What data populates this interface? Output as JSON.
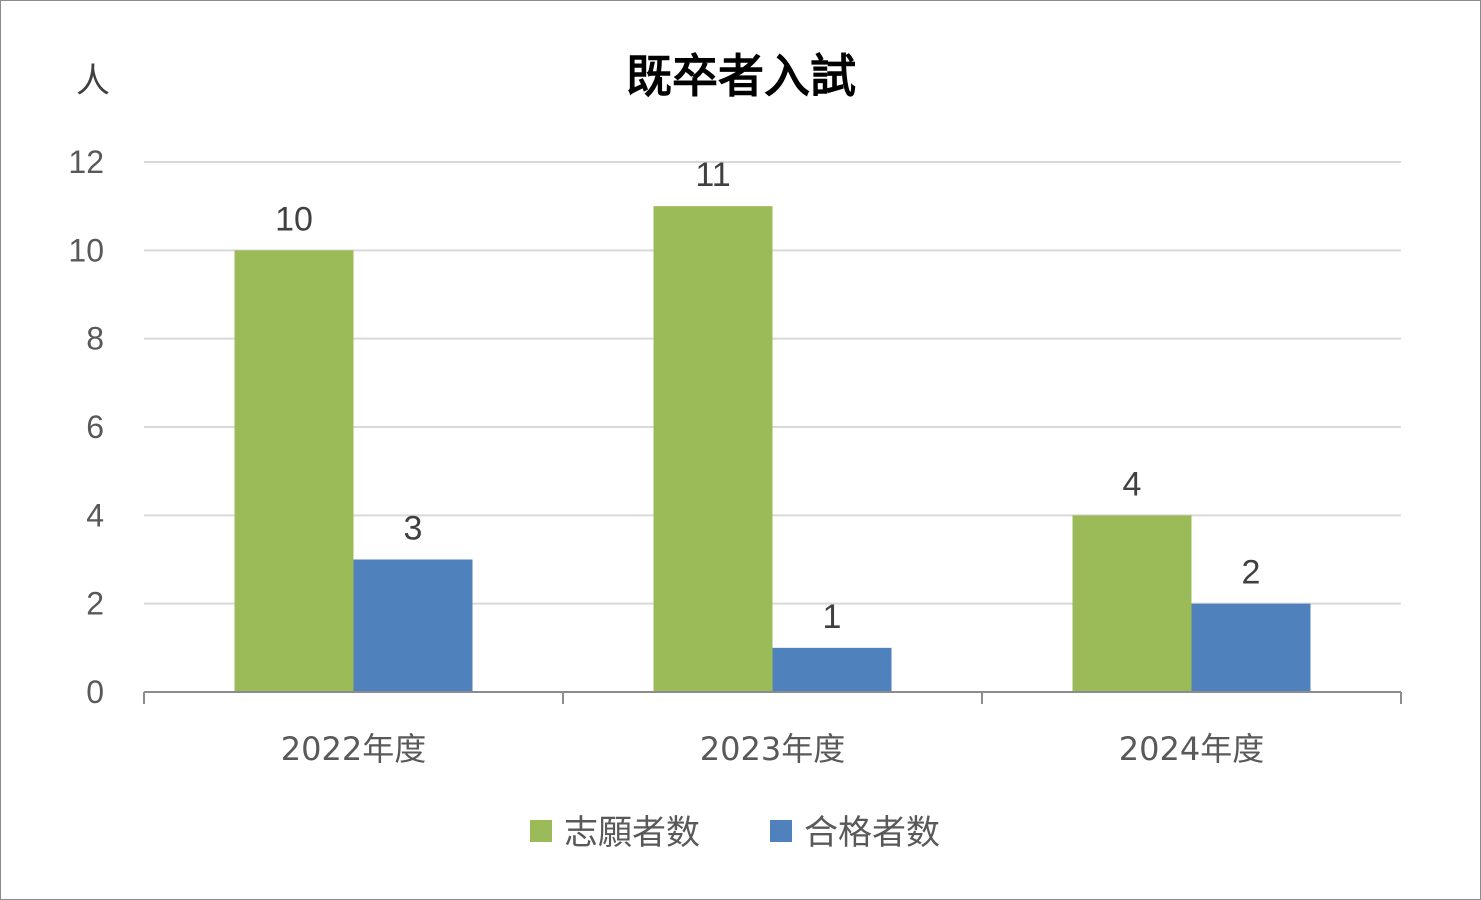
{
  "chart_data": {
    "type": "bar",
    "title": "既卒者入試",
    "ylabel": "人",
    "xlabel": "",
    "categories": [
      "2022年度",
      "2023年度",
      "2024年度"
    ],
    "series": [
      {
        "name": "志願者数",
        "values": [
          10,
          11,
          4
        ],
        "color": "#9bbb59"
      },
      {
        "name": "合格者数",
        "values": [
          3,
          1,
          2
        ],
        "color": "#4f81bd"
      }
    ],
    "ylim": [
      0,
      12
    ],
    "yticks": [
      0,
      2,
      4,
      6,
      8,
      10,
      12
    ],
    "grid": true,
    "legend_position": "bottom",
    "data_labels": true
  }
}
